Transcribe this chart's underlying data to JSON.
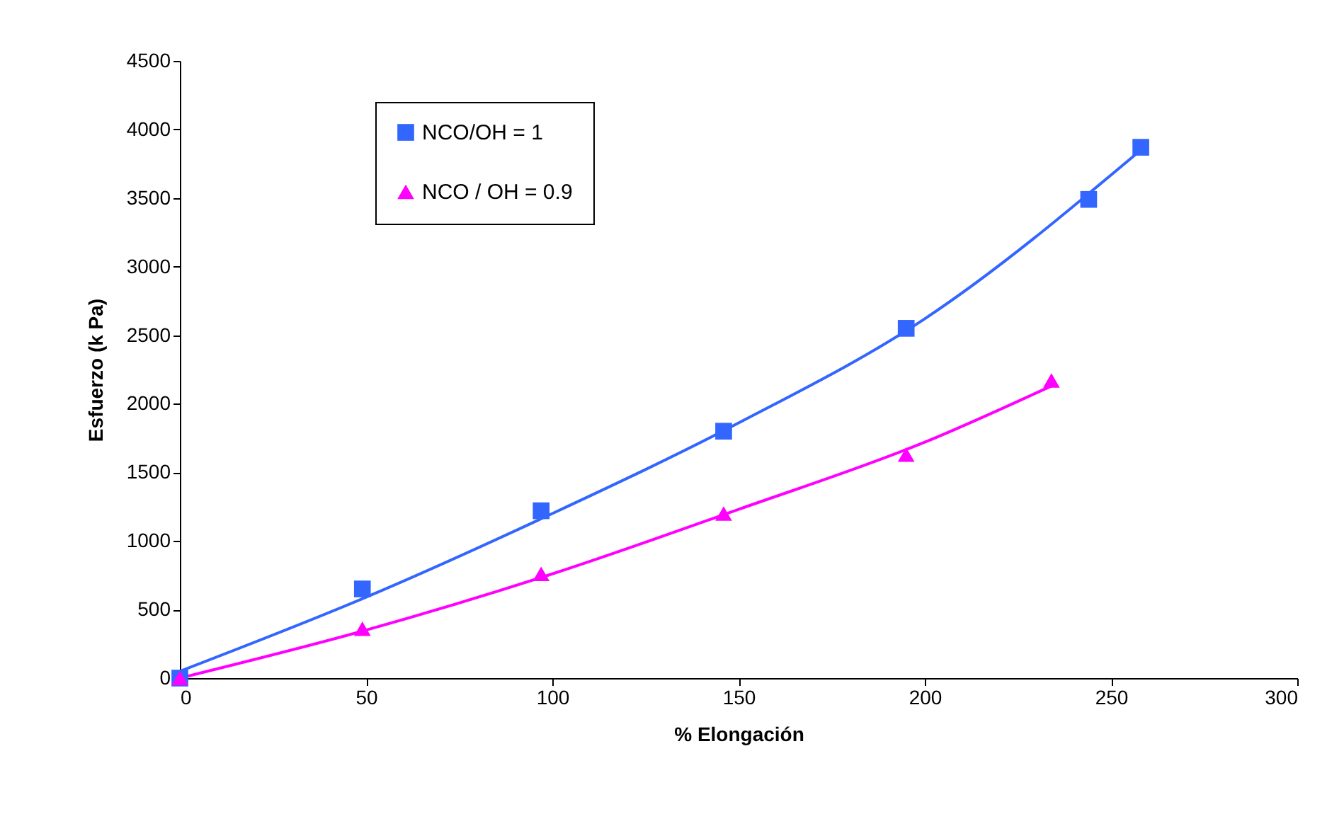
{
  "chart_data": {
    "type": "scatter",
    "xlabel": "% Elongación",
    "ylabel": "Esfuerzo (k Pa)",
    "xlim": [
      0,
      300
    ],
    "xticks": [
      0,
      50,
      100,
      150,
      200,
      250,
      300
    ],
    "ylim": [
      0,
      4500
    ],
    "yticks": [
      0,
      500,
      1000,
      1500,
      2000,
      2500,
      3000,
      3500,
      4000,
      4500
    ],
    "grid": false,
    "legend": "top left",
    "series": [
      {
        "name": "NCO/OH = 1",
        "color": "#3366ff",
        "marker": "square",
        "x": [
          0,
          49,
          97,
          146,
          195,
          244,
          258
        ],
        "values": [
          0,
          650,
          1220,
          1800,
          2550,
          3490,
          3870
        ]
      },
      {
        "name": "NCO / OH = 0.9",
        "color": "#ff00ff",
        "marker": "triangle",
        "x": [
          0,
          49,
          97,
          146,
          195,
          234
        ],
        "values": [
          0,
          360,
          760,
          1200,
          1630,
          2170
        ]
      },
      {
        "color": "#3366ff",
        "type": "line",
        "x": [
          0,
          50,
          100,
          150,
          200,
          258
        ],
        "values": [
          50,
          590,
          1200,
          1860,
          2620,
          3850
        ]
      },
      {
        "color": "#ff00ff",
        "type": "line",
        "x": [
          0,
          50,
          100,
          150,
          200,
          234
        ],
        "values": [
          0,
          350,
          760,
          1230,
          1720,
          2130
        ]
      }
    ]
  }
}
